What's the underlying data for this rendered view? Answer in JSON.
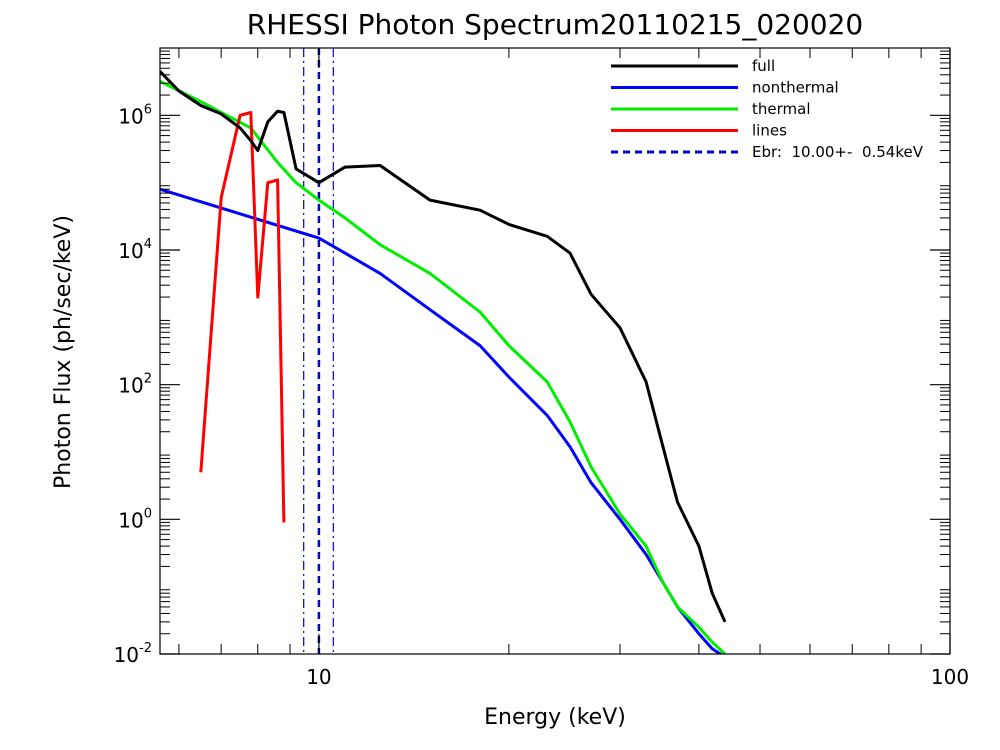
{
  "chart_data": {
    "type": "line",
    "title": "RHESSI Photon Spectrum20110215_020020",
    "xlabel": "Energy (keV)",
    "ylabel": "Photon Flux (ph/sec/keV)",
    "x_scale": "log",
    "y_scale": "log",
    "xlim": [
      5.6,
      100
    ],
    "ylim": [
      0.01,
      10000000
    ],
    "x_ticks": [
      {
        "value": 10,
        "label": "10"
      },
      {
        "value": 100,
        "label": "100"
      }
    ],
    "y_ticks": [
      {
        "value": 0.01,
        "base": "10",
        "exp": "-2"
      },
      {
        "value": 1,
        "base": "10",
        "exp": "0"
      },
      {
        "value": 100,
        "base": "10",
        "exp": "2"
      },
      {
        "value": 10000,
        "base": "10",
        "exp": "4"
      },
      {
        "value": 1000000,
        "base": "10",
        "exp": "6"
      }
    ],
    "legend_position": "top-right",
    "legend": [
      {
        "label": "full",
        "color": "#000000",
        "dash": "solid"
      },
      {
        "label": "nonthermal",
        "color": "#0000ff",
        "dash": "solid"
      },
      {
        "label": "thermal",
        "color": "#00ee00",
        "dash": "solid"
      },
      {
        "label": "lines",
        "color": "#ff0000",
        "dash": "solid"
      },
      {
        "label": "Ebr:  10.00+-  0.54keV",
        "color": "#0000cc",
        "dash": "dashed"
      }
    ],
    "vlines": [
      {
        "x": 10.0,
        "color": "#0000cc",
        "dash": "dashed"
      },
      {
        "x": 9.46,
        "color": "#0000cc",
        "dash": "dashdot"
      },
      {
        "x": 10.54,
        "color": "#0000ff",
        "dash": "dashdot"
      }
    ],
    "series": [
      {
        "name": "full",
        "color": "#000000",
        "x": [
          5.6,
          6.0,
          6.5,
          7.0,
          7.5,
          7.8,
          8.0,
          8.3,
          8.6,
          8.8,
          9.2,
          10.0,
          11.0,
          12.5,
          15.0,
          18.0,
          20.0,
          23.0,
          25.0,
          27.0,
          30.0,
          33.0,
          35.0,
          37.0,
          40.0,
          42.0,
          44.0
        ],
        "y": [
          4500000,
          2300000,
          1400000,
          1050000,
          650000,
          420000,
          300000,
          800000,
          1150000,
          1100000,
          160000,
          100000,
          170000,
          180000,
          55000,
          39000,
          24000,
          16000,
          9000,
          2200,
          700,
          110,
          13,
          1.8,
          0.4,
          0.08,
          0.03
        ]
      },
      {
        "name": "nonthermal",
        "color": "#0000ff",
        "x": [
          5.6,
          10.0,
          11.0,
          12.5,
          15.0,
          18.0,
          20.0,
          23.0,
          25.0,
          27.0,
          30.0,
          33.0,
          35.0,
          37.0,
          40.0,
          42.0,
          44.0
        ],
        "y": [
          80000,
          15000,
          9000,
          4500,
          1300,
          380,
          130,
          35,
          12,
          3.5,
          1.0,
          0.3,
          0.12,
          0.05,
          0.02,
          0.012,
          0.009
        ]
      },
      {
        "name": "thermal",
        "color": "#00ee00",
        "x": [
          5.6,
          6.5,
          7.0,
          7.8,
          8.6,
          9.2,
          10.0,
          11.0,
          12.5,
          15.0,
          18.0,
          20.0,
          23.0,
          25.0,
          27.0,
          30.0,
          33.0,
          35.0,
          37.0,
          40.0,
          42.0,
          44.0
        ],
        "y": [
          3200000,
          1600000,
          1100000,
          650000,
          200000,
          100000,
          55000,
          30000,
          12000,
          4500,
          1200,
          380,
          110,
          28,
          6,
          1.2,
          0.4,
          0.12,
          0.05,
          0.025,
          0.015,
          0.01
        ]
      },
      {
        "name": "lines",
        "color": "#ff0000",
        "x": [
          6.5,
          7.0,
          7.5,
          7.8,
          8.0,
          8.3,
          8.6,
          8.8
        ],
        "y": [
          5,
          60000,
          1000000,
          1100000,
          2000,
          100000,
          110000,
          0.9
        ]
      }
    ]
  }
}
